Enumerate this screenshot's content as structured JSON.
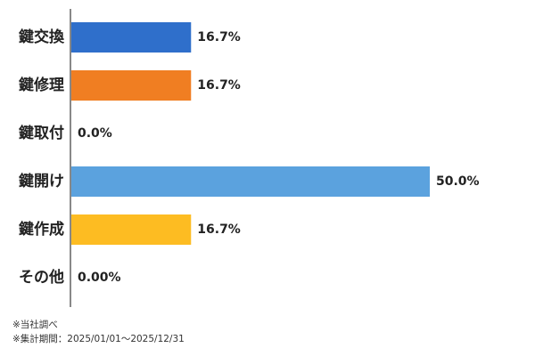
{
  "chart_data": {
    "type": "bar",
    "orientation": "horizontal",
    "categories": [
      "鍵交換",
      "鍵修理",
      "鍵取付",
      "鍵開け",
      "鍵作成",
      "その他"
    ],
    "values": [
      16.7,
      16.7,
      0.0,
      50.0,
      16.7,
      0.0
    ],
    "value_labels": [
      "16.7%",
      "16.7%",
      "0.0%",
      "50.0%",
      "16.7%",
      "0.00%"
    ],
    "colors": [
      "#2f6fcb",
      "#f07e22",
      "#9e9e9e",
      "#5ba2de",
      "#fdbc22",
      "#7f7f7f"
    ],
    "xlim": [
      0,
      50
    ],
    "grid": false,
    "legend": "none"
  },
  "notes": {
    "source": "※当社調べ",
    "period": "※集計期間：2025/01/01〜2025/12/31"
  }
}
